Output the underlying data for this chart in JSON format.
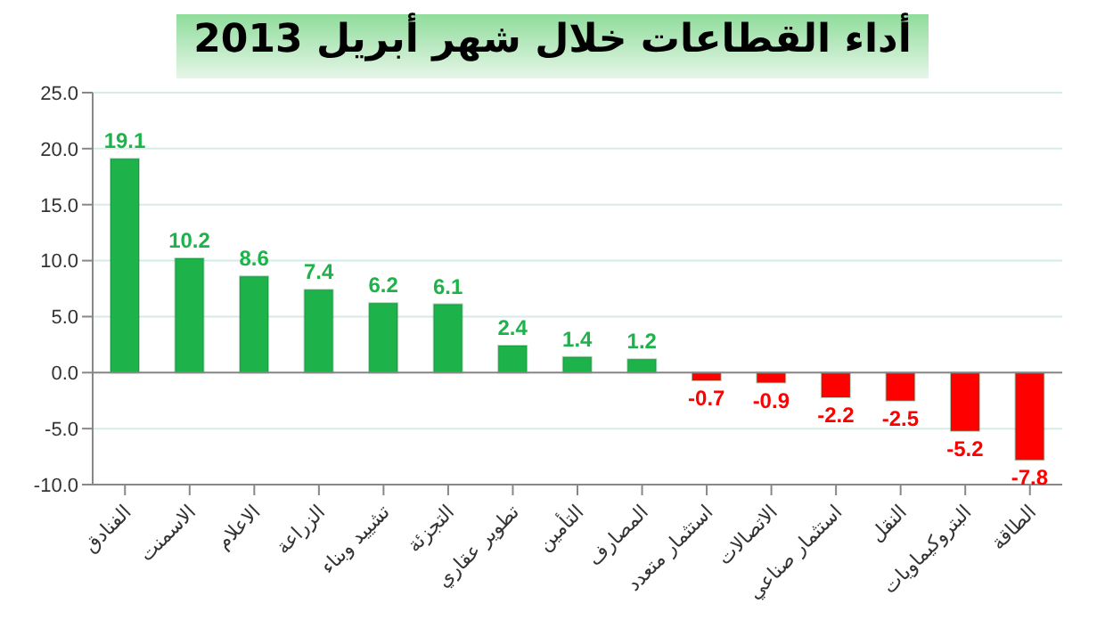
{
  "chart_data": {
    "type": "bar",
    "title": "أداء القطاعات خلال شهر أبريل 2013",
    "categories": [
      "الفنادق",
      "الاسمنت",
      "الاعلام",
      "الزراعة",
      "تشييد وبناء",
      "التجزئة",
      "تطوير عقاري",
      "التأمين",
      "المصارف",
      "استثمار متعدد",
      "الاتصالات",
      "استثمار صناعي",
      "النقل",
      "البتروكيماويات",
      "الطاقة"
    ],
    "values": [
      19.1,
      10.2,
      8.6,
      7.4,
      6.2,
      6.1,
      2.4,
      1.4,
      1.2,
      -0.7,
      -0.9,
      -2.2,
      -2.5,
      -5.2,
      -7.8
    ],
    "colors": [
      "#1db34a",
      "#1db34a",
      "#1db34a",
      "#1db34a",
      "#1db34a",
      "#1db34a",
      "#1db34a",
      "#1db34a",
      "#1db34a",
      "#ff0000",
      "#ff0000",
      "#ff0000",
      "#ff0000",
      "#ff0000",
      "#ff0000"
    ],
    "data_labels": true,
    "ylim": [
      -10,
      25
    ],
    "yticks": [
      {
        "value": -10,
        "label": "-10.0"
      },
      {
        "value": -5,
        "label": "-5.0"
      },
      {
        "value": 0,
        "label": "0.0"
      },
      {
        "value": 5,
        "label": "5.0"
      },
      {
        "value": 10,
        "label": "10.0"
      },
      {
        "value": 15,
        "label": "15.0"
      },
      {
        "value": 20,
        "label": "20.0"
      },
      {
        "value": 25,
        "label": "25.0"
      }
    ],
    "grid": "y"
  }
}
